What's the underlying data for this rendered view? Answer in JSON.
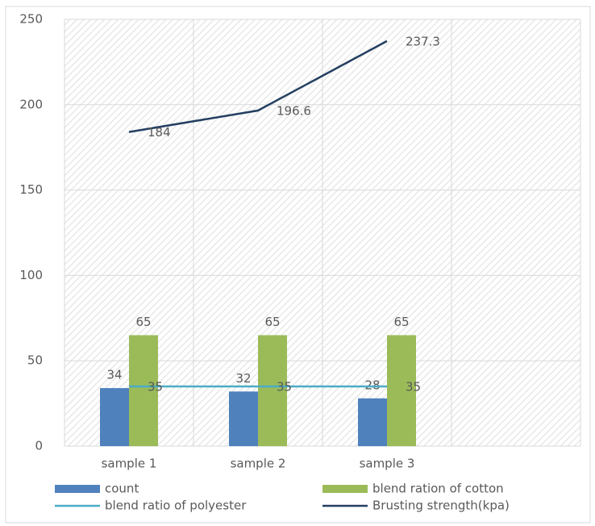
{
  "chart_data": {
    "type": "combo",
    "categories": [
      "sample 1",
      "sample 2",
      "sample 3",
      null
    ],
    "series": [
      {
        "name": "count",
        "type": "bar",
        "color": "#4f81bd",
        "values": [
          34,
          32,
          28,
          null
        ]
      },
      {
        "name": "blend ration of cotton",
        "type": "bar",
        "color": "#9bbb59",
        "values": [
          65,
          65,
          65,
          null
        ]
      },
      {
        "name": "blend ratio of polyester",
        "type": "line",
        "color": "#4bacc6",
        "values": [
          35,
          35,
          35,
          null
        ]
      },
      {
        "name": "Brusting strength(kpa)",
        "type": "line",
        "color": "#243f60",
        "values": [
          184,
          196.6,
          237.3,
          null
        ]
      }
    ],
    "ylim": [
      0,
      250
    ],
    "yticks": [
      0,
      50,
      100,
      150,
      200,
      250
    ],
    "grid": true,
    "legend": "bottom"
  }
}
